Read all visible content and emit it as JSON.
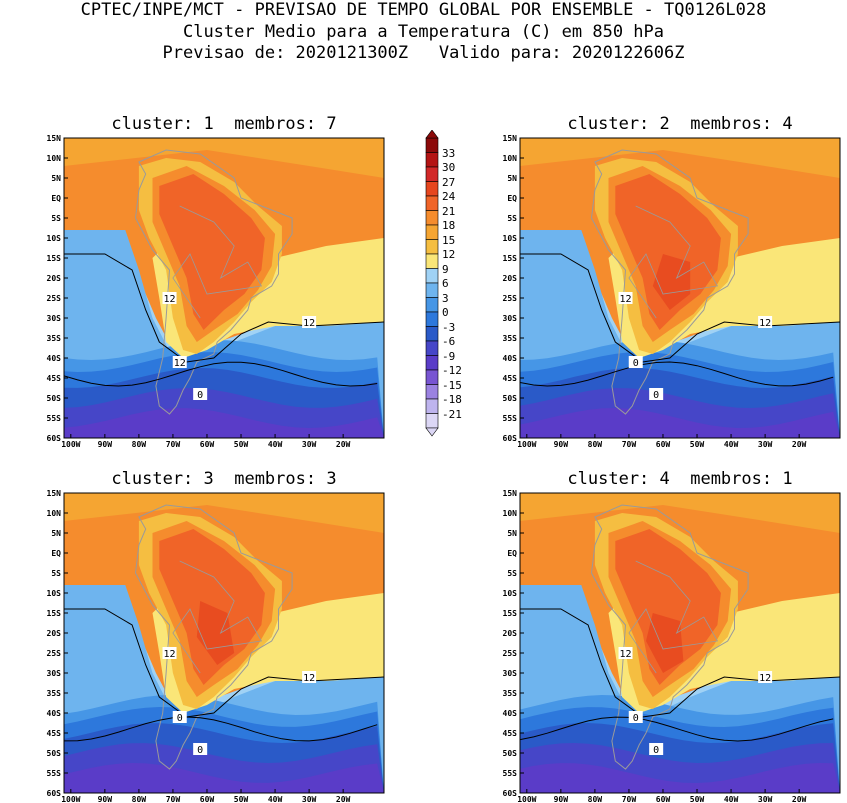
{
  "header": {
    "line1": "CPTEC/INPE/MCT - PREVISAO DE TEMPO GLOBAL POR ENSEMBLE - TQ0126L028",
    "line2": "Cluster Medio para a Temperatura (C) em 850 hPa",
    "line3": "Previsao de: 2020121300Z   Valido para: 2020122606Z"
  },
  "panels": [
    {
      "title": "cluster: 1  membros: 7",
      "contours": [
        {
          "label": "12"
        },
        {
          "label": "12"
        },
        {
          "label": "12"
        },
        {
          "label": "0"
        }
      ]
    },
    {
      "title": "cluster: 2  membros: 4",
      "contours": [
        {
          "label": "12"
        },
        {
          "label": "12"
        },
        {
          "label": "0"
        },
        {
          "label": "0"
        }
      ]
    },
    {
      "title": "cluster: 3  membros: 3",
      "contours": [
        {
          "label": "12"
        },
        {
          "label": "12"
        },
        {
          "label": "0"
        },
        {
          "label": "0"
        }
      ]
    },
    {
      "title": "cluster: 4  membros: 1",
      "contours": [
        {
          "label": "12"
        },
        {
          "label": "12"
        },
        {
          "label": "0"
        },
        {
          "label": "0"
        }
      ]
    }
  ],
  "axes": {
    "lat_ticks": [
      "15N",
      "10N",
      "5N",
      "EQ",
      "5S",
      "10S",
      "15S",
      "20S",
      "25S",
      "30S",
      "35S",
      "40S",
      "45S",
      "50S",
      "55S",
      "60S"
    ],
    "lon_ticks": [
      "100W",
      "90W",
      "80W",
      "70W",
      "60W",
      "50W",
      "40W",
      "30W",
      "20W"
    ]
  },
  "colorbar": {
    "labels": [
      "33",
      "30",
      "27",
      "24",
      "21",
      "18",
      "15",
      "12",
      "9",
      "6",
      "3",
      "0",
      "-3",
      "-6",
      "-9",
      "-12",
      "-15",
      "-18",
      "-21"
    ],
    "colors": [
      "#8c0a0a",
      "#b41414",
      "#d22828",
      "#e6461e",
      "#f06428",
      "#f58c2d",
      "#f5a532",
      "#f5be41",
      "#fae678",
      "#a0d2f5",
      "#6eb4ee",
      "#4696e6",
      "#2d78dc",
      "#2a5ac8",
      "#4646c8",
      "#5a3cc8",
      "#7855d2",
      "#9b82e1",
      "#beb4ee",
      "#dcd7f5"
    ]
  }
}
